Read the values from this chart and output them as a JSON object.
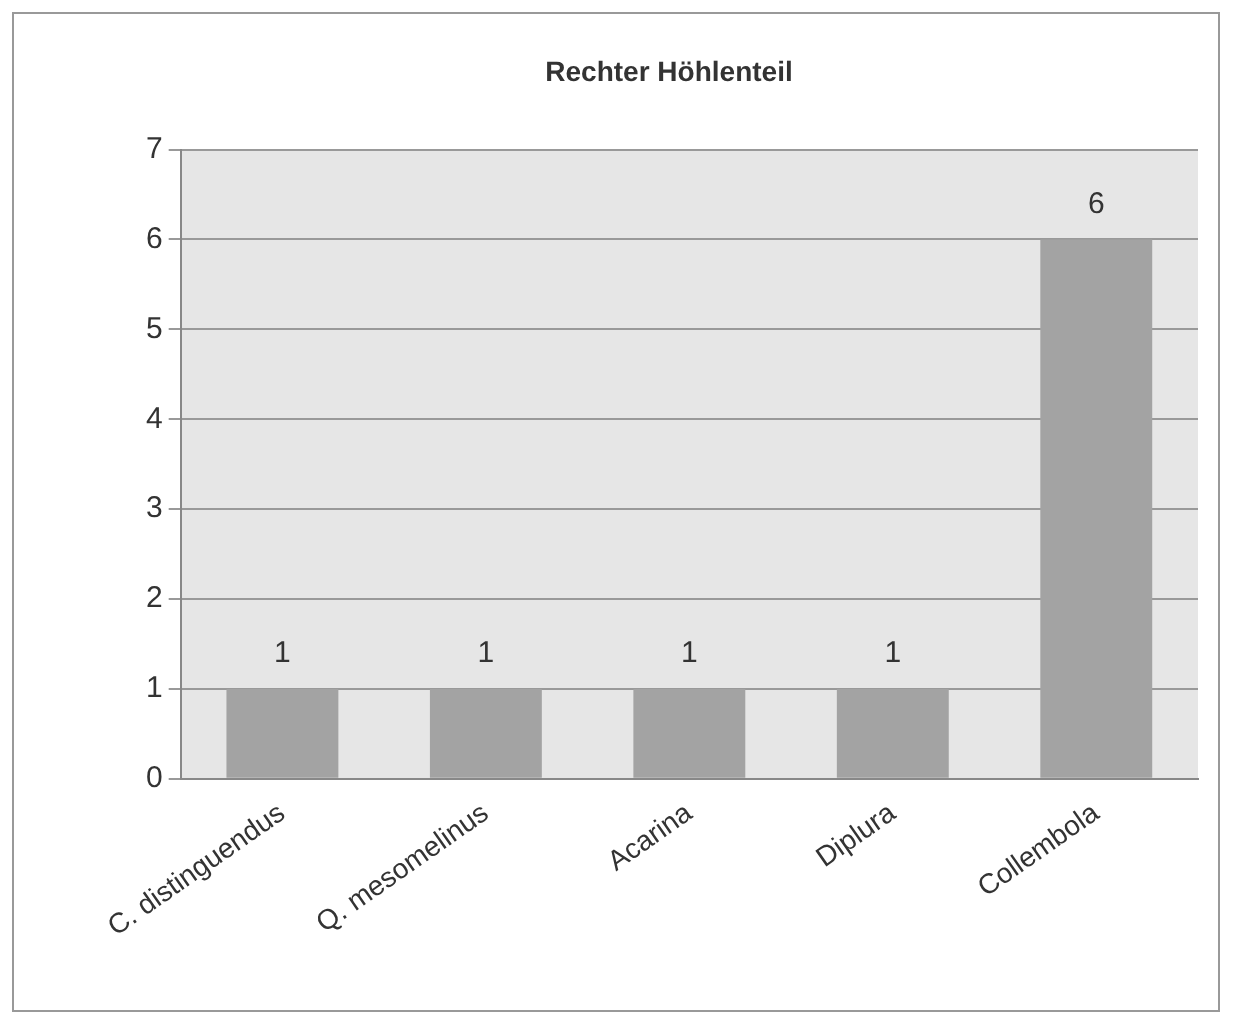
{
  "chart_data": {
    "type": "bar",
    "title": "Rechter Höhlenteil",
    "categories": [
      "C. distinguendus",
      "Q. mesomelinus",
      "Acarina",
      "Diplura",
      "Collembola"
    ],
    "values": [
      1,
      1,
      1,
      1,
      6
    ],
    "color": "#a3a3a3",
    "ylim": [
      0,
      7
    ],
    "yticks": [
      0,
      1,
      2,
      3,
      4,
      5,
      6,
      7
    ],
    "grid": "y",
    "data_labels": true,
    "legend": false
  }
}
